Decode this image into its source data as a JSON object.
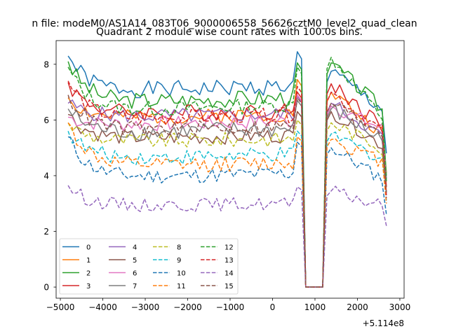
{
  "chart_data": {
    "type": "line",
    "suptitle": "n file: modeM0/AS1A14_083T06_9000006558_56626cztM0_level2_quad_clean",
    "title": "Quadrant 2 module wise count rates with 100.0s bins.",
    "xlabel": "",
    "ylabel": "",
    "offset_label": "+5.114e8",
    "xlim": [
      -5100,
      3100
    ],
    "ylim": [
      -0.4,
      8.85
    ],
    "xticks": [
      -5000,
      -4000,
      -3000,
      -2000,
      -1000,
      0,
      1000,
      2000,
      3000
    ],
    "xtick_labels": [
      "−5000",
      "−4000",
      "−3000",
      "−2000",
      "−1000",
      "0",
      "1000",
      "2000",
      "3000"
    ],
    "yticks": [
      0,
      2,
      4,
      6,
      8
    ],
    "ytick_labels": [
      "0",
      "2",
      "4",
      "6",
      "8"
    ],
    "x": [
      -4817,
      -4717,
      -4617,
      -4517,
      -4417,
      -4317,
      -4217,
      -4117,
      -4017,
      -3917,
      -3817,
      -3717,
      -3617,
      -3517,
      -3417,
      -3317,
      -3217,
      -3117,
      -3017,
      -2917,
      -2817,
      -2717,
      -2617,
      -2517,
      -2417,
      -2317,
      -2217,
      -2117,
      -2017,
      -1917,
      -1817,
      -1717,
      -1617,
      -1517,
      -1417,
      -1317,
      -1217,
      -1117,
      -1017,
      -917,
      -817,
      -717,
      -617,
      -517,
      -417,
      -317,
      -217,
      -117,
      -17,
      83,
      183,
      283,
      383,
      483,
      583,
      683,
      783,
      883,
      983,
      1083,
      1183,
      1283,
      1383,
      1483,
      1583,
      1683,
      1783,
      1883,
      1983,
      2083,
      2183,
      2283,
      2383,
      2483,
      2583,
      2683
    ],
    "series": [
      {
        "name": "0",
        "style": "solid",
        "color": "#1f77b4",
        "base": 7.0,
        "amp": 0.28,
        "seed": 1,
        "start": 8.3,
        "peak": 8.45,
        "after": 7.75,
        "tail": 6.4,
        "end": 4.8
      },
      {
        "name": "1",
        "style": "solid",
        "color": "#ff7f0e",
        "base": 6.0,
        "amp": 0.25,
        "seed": 2,
        "start": 6.8,
        "peak": 7.45,
        "after": 7.0,
        "tail": 5.5,
        "end": 4.1
      },
      {
        "name": "2",
        "style": "solid",
        "color": "#2ca02c",
        "base": 6.6,
        "amp": 0.28,
        "seed": 3,
        "start": 8.1,
        "peak": 8.05,
        "after": 8.05,
        "tail": 6.4,
        "end": 4.0
      },
      {
        "name": "3",
        "style": "solid",
        "color": "#d62728",
        "base": 6.2,
        "amp": 0.28,
        "seed": 4,
        "start": 7.35,
        "peak": 7.0,
        "after": 7.3,
        "tail": 5.8,
        "end": 3.6
      },
      {
        "name": "4",
        "style": "solid",
        "color": "#9467bd",
        "base": 6.1,
        "amp": 0.25,
        "seed": 5,
        "start": 6.6,
        "peak": 6.85,
        "after": 6.6,
        "tail": 5.4,
        "end": 3.3
      },
      {
        "name": "5",
        "style": "solid",
        "color": "#8c564b",
        "base": 5.3,
        "amp": 0.25,
        "seed": 6,
        "start": 6.2,
        "peak": 6.3,
        "after": 6.3,
        "tail": 5.1,
        "end": 3.4
      },
      {
        "name": "6",
        "style": "solid",
        "color": "#e377c2",
        "base": 5.8,
        "amp": 0.25,
        "seed": 7,
        "start": 6.1,
        "peak": 6.9,
        "after": 6.5,
        "tail": 5.7,
        "end": 3.9
      },
      {
        "name": "7",
        "style": "solid",
        "color": "#7f7f7f",
        "base": 5.5,
        "amp": 0.3,
        "seed": 8,
        "start": 6.4,
        "peak": 6.7,
        "after": 6.4,
        "tail": 5.3,
        "end": 3.9
      },
      {
        "name": "8",
        "style": "dashed",
        "color": "#bcbd22",
        "base": 5.2,
        "amp": 0.25,
        "seed": 9,
        "start": 5.9,
        "peak": 6.0,
        "after": 5.9,
        "tail": 5.0,
        "end": 3.4
      },
      {
        "name": "9",
        "style": "dashed",
        "color": "#17becf",
        "base": 4.6,
        "amp": 0.25,
        "seed": 10,
        "start": 5.6,
        "peak": 5.6,
        "after": 5.5,
        "tail": 4.6,
        "end": 3.1
      },
      {
        "name": "10",
        "style": "dashed",
        "color": "#1f77b4",
        "base": 3.9,
        "amp": 0.25,
        "seed": 11,
        "start": 5.4,
        "peak": 5.2,
        "after": 5.0,
        "tail": 3.9,
        "end": 2.6
      },
      {
        "name": "11",
        "style": "dashed",
        "color": "#ff7f0e",
        "base": 4.3,
        "amp": 0.25,
        "seed": 12,
        "start": 5.9,
        "peak": 5.4,
        "after": 5.3,
        "tail": 4.5,
        "end": 3.0
      },
      {
        "name": "12",
        "style": "dashed",
        "color": "#2ca02c",
        "base": 6.3,
        "amp": 0.25,
        "seed": 13,
        "start": 7.9,
        "peak": 7.9,
        "after": 8.25,
        "tail": 6.1,
        "end": 3.8
      },
      {
        "name": "13",
        "style": "dashed",
        "color": "#d62728",
        "base": 6.0,
        "amp": 0.25,
        "seed": 14,
        "start": 7.4,
        "peak": 7.2,
        "after": 7.0,
        "tail": 5.6,
        "end": 3.2
      },
      {
        "name": "14",
        "style": "dashed",
        "color": "#9467bd",
        "base": 2.9,
        "amp": 0.22,
        "seed": 15,
        "start": 3.65,
        "peak": 3.6,
        "after": 3.45,
        "tail": 2.9,
        "end": 2.2
      },
      {
        "name": "15",
        "style": "dashed",
        "color": "#8c564b",
        "base": 5.6,
        "amp": 0.25,
        "seed": 16,
        "start": 6.9,
        "peak": 6.8,
        "after": 6.6,
        "tail": 5.6,
        "end": 3.4
      }
    ],
    "legend_position": "lower-left"
  }
}
